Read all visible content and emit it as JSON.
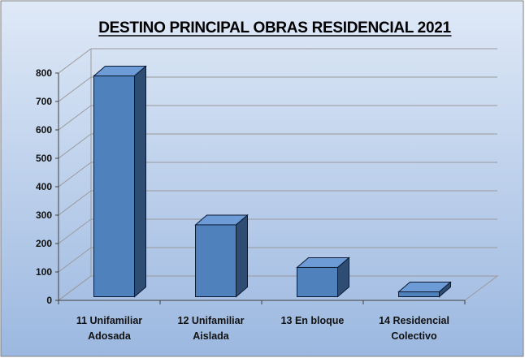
{
  "chart_data": {
    "type": "bar",
    "title": "DESTINO PRINCIPAL OBRAS RESIDENCIAL 2021",
    "categories": [
      [
        "11 Unifamiliar",
        "Adosada"
      ],
      [
        "12 Unifamiliar",
        "Aislada"
      ],
      [
        "13 En bloque"
      ],
      [
        "14 Residencial",
        "Colectivo"
      ]
    ],
    "values": [
      777,
      253,
      103,
      17
    ],
    "yticks": [
      "0",
      "100",
      "200",
      "300",
      "400",
      "500",
      "600",
      "700",
      "800"
    ],
    "ylim": [
      0,
      800
    ],
    "grid": true,
    "legend": "none",
    "colors": {
      "bar_front": "#4f81bd",
      "bar_top": "#6d9bd6",
      "bar_side": "#2f4d73",
      "bar_edge": "#0b1a33",
      "background_top": "#dfe9f7",
      "background_bottom": "#9cb8e0",
      "grid": "#9a9a9a",
      "border": "#7f7f7f"
    }
  }
}
